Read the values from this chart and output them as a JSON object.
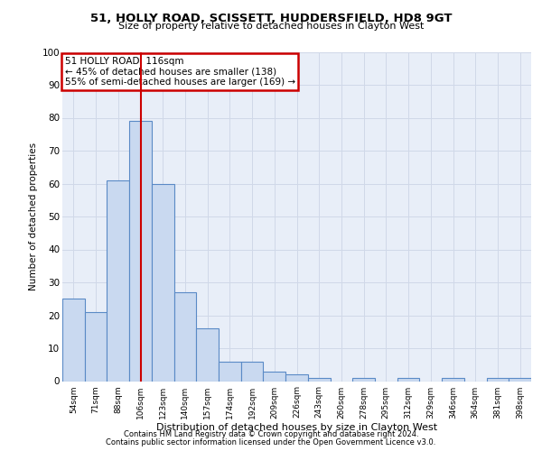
{
  "title1": "51, HOLLY ROAD, SCISSETT, HUDDERSFIELD, HD8 9GT",
  "title2": "Size of property relative to detached houses in Clayton West",
  "xlabel": "Distribution of detached houses by size in Clayton West",
  "ylabel": "Number of detached properties",
  "bin_labels": [
    "54sqm",
    "71sqm",
    "88sqm",
    "106sqm",
    "123sqm",
    "140sqm",
    "157sqm",
    "174sqm",
    "192sqm",
    "209sqm",
    "226sqm",
    "243sqm",
    "260sqm",
    "278sqm",
    "295sqm",
    "312sqm",
    "329sqm",
    "346sqm",
    "364sqm",
    "381sqm",
    "398sqm"
  ],
  "bar_heights": [
    25,
    21,
    61,
    79,
    60,
    27,
    16,
    6,
    6,
    3,
    2,
    1,
    0,
    1,
    0,
    1,
    0,
    1,
    0,
    1,
    1
  ],
  "bar_color": "#c9d9f0",
  "bar_edge_color": "#5a8ac6",
  "vline_x": 3,
  "vline_color": "#cc0000",
  "annotation_line1": "51 HOLLY ROAD: 116sqm",
  "annotation_line2": "← 45% of detached houses are smaller (138)",
  "annotation_line3": "55% of semi-detached houses are larger (169) →",
  "annotation_box_color": "#cc0000",
  "annotation_box_fill": "#ffffff",
  "ylim": [
    0,
    100
  ],
  "yticks": [
    0,
    10,
    20,
    30,
    40,
    50,
    60,
    70,
    80,
    90,
    100
  ],
  "grid_color": "#d0d8e8",
  "bg_color": "#e8eef8",
  "footer1": "Contains HM Land Registry data © Crown copyright and database right 2024.",
  "footer2": "Contains public sector information licensed under the Open Government Licence v3.0."
}
